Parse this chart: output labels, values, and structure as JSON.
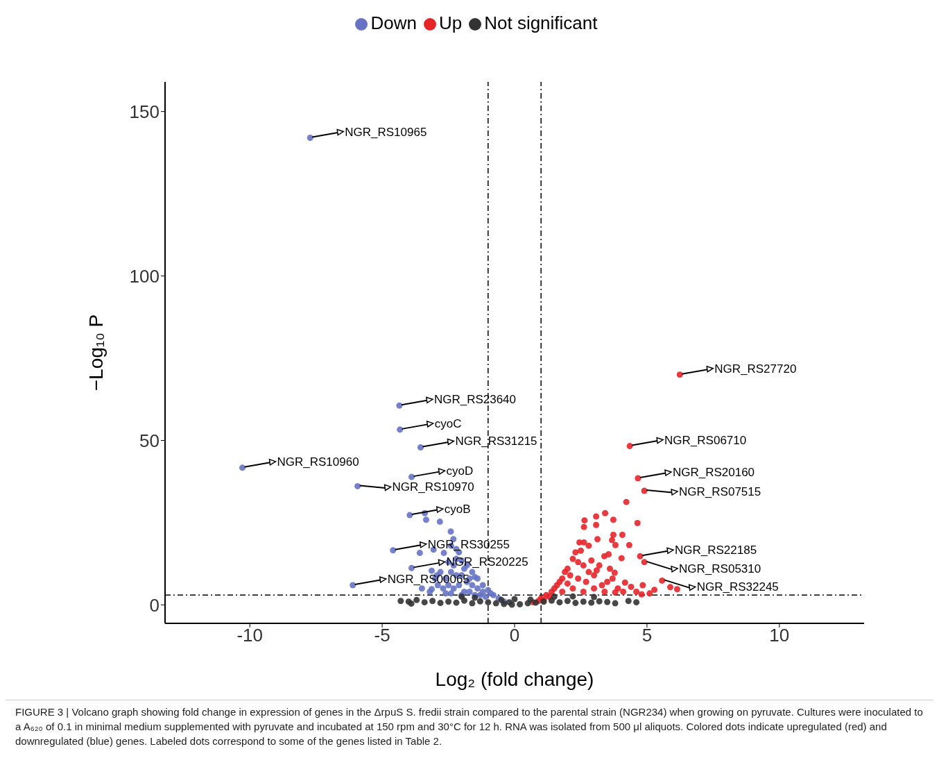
{
  "chart_data": {
    "type": "scatter",
    "xlabel": "Log₂ (fold change)",
    "ylabel": "−Log₁₀ P",
    "xlim": [
      -13.2,
      13.2
    ],
    "ylim": [
      -5.6,
      159
    ],
    "xticks": [
      -10,
      -5,
      0,
      5,
      10
    ],
    "yticks": [
      0,
      50,
      100,
      150
    ],
    "legend": "top",
    "marker": "circle",
    "series": [
      {
        "name": "Down",
        "color": "#6673c4",
        "x": [
          -7.72,
          -4.35,
          -4.33,
          -3.55,
          -10.28,
          -3.89,
          -5.93,
          -3.96,
          -4.59,
          -3.89,
          -6.11,
          -3.39,
          -3.34,
          -2.82,
          -2.41,
          -2.31,
          -3.58,
          -3.06,
          -2.67,
          -3.13,
          -2.93,
          -3.13,
          -2.5,
          -2.2,
          -2.0,
          -1.8,
          -1.6,
          -1.4,
          -1.2,
          -1.0,
          -0.8,
          -0.6,
          -0.4,
          -2.8,
          -2.6,
          -2.4,
          -2.2,
          -2.0,
          -1.8,
          -1.6,
          -1.4,
          -1.2,
          -2.9,
          -2.7,
          -2.5,
          -2.3,
          -2.1,
          -1.9,
          -1.7,
          -1.5,
          -1.3,
          -1.1,
          -2.6,
          -2.4,
          -2.0,
          -3.2,
          -3.5,
          -3.0,
          -1.9,
          -2.3,
          -1.7,
          -2.1,
          -2.4,
          -2.2,
          -1.5,
          -0.9
        ],
        "values": [
          142,
          60.6,
          53.3,
          47.9,
          41.7,
          38.9,
          36.1,
          27.3,
          16.6,
          11.2,
          6,
          27.9,
          25.9,
          25.3,
          22.3,
          20,
          15.8,
          16.8,
          15.8,
          10.4,
          9,
          4.8,
          13,
          14,
          13.5,
          12,
          10,
          8,
          6,
          4.5,
          3,
          2,
          1,
          10,
          8,
          10,
          9,
          9,
          7,
          6,
          5,
          4,
          6,
          5,
          6,
          5,
          6,
          4,
          4,
          3,
          3,
          2.5,
          3.5,
          3.5,
          3,
          4,
          5,
          8,
          11,
          12,
          8,
          16,
          18,
          17,
          8.5,
          3.5
        ]
      },
      {
        "name": "Up",
        "color": "#e5252a",
        "x": [
          6.24,
          4.35,
          4.66,
          4.9,
          4.74,
          4.9,
          5.57,
          4.22,
          3.42,
          3.08,
          2.64,
          3.73,
          4.64,
          2.62,
          3.08,
          3.13,
          3.73,
          4.07,
          3.68,
          4.33,
          3.81,
          2.62,
          4.04,
          3.39,
          3.55,
          3.78,
          4.17,
          5.88,
          6.14,
          4.84,
          5.28,
          1.0,
          1.2,
          1.4,
          1.6,
          1.8,
          2.0,
          2.2,
          2.4,
          2.6,
          2.8,
          3.0,
          3.2,
          2.3,
          2.5,
          1.9,
          1.5,
          1.7,
          2.1,
          2.4,
          2.7,
          3.0,
          3.3,
          3.5,
          3.7,
          3.9,
          4.1,
          4.4,
          4.6,
          1.3,
          1.8,
          2.2,
          2.6,
          3.4,
          3.6,
          2.9,
          3.1,
          2.0,
          1.1,
          0.9,
          0.7,
          3.8,
          4.8,
          5.1,
          2.45,
          2.8
        ],
        "values": [
          70,
          48.3,
          38.5,
          34.7,
          14.8,
          13,
          7.4,
          31.3,
          27.9,
          26.9,
          25.7,
          25.9,
          24.9,
          23.7,
          24.3,
          20,
          21.3,
          21.3,
          19.7,
          18.2,
          18.2,
          19,
          14.2,
          14.8,
          15.4,
          9.8,
          6.8,
          5.4,
          4.8,
          6,
          4.6,
          2,
          3,
          4,
          6,
          8,
          11,
          14,
          13,
          12,
          10,
          9,
          12,
          16,
          16.5,
          10,
          5,
          7,
          9,
          8,
          7,
          5,
          6,
          7,
          8,
          5,
          4,
          5.5,
          4,
          2.5,
          4,
          5,
          4,
          4,
          11,
          13.5,
          10.5,
          6.5,
          1.5,
          1.2,
          0.8,
          3.8,
          3.2,
          3.5,
          19,
          18
        ]
      },
      {
        "name": "Not significant",
        "color": "#333333",
        "x": [
          -4.3,
          -4.0,
          -3.7,
          -3.4,
          -3.1,
          -2.8,
          -2.5,
          -2.2,
          -1.9,
          -1.6,
          -1.3,
          -1.0,
          -0.7,
          -0.4,
          -0.1,
          0.2,
          0.5,
          0.8,
          1.1,
          1.4,
          1.7,
          2.0,
          2.3,
          2.6,
          2.9,
          3.2,
          3.5,
          3.8,
          4.3,
          4.6,
          -2.0,
          -1.5,
          1.5,
          2.2,
          0.0,
          -0.5,
          0.6,
          -3.9,
          3.0,
          -0.2
        ],
        "values": [
          1.2,
          1.0,
          1.5,
          0.8,
          1.2,
          0.6,
          1.0,
          0.7,
          1.3,
          0.5,
          1.1,
          0.8,
          0.5,
          0.3,
          0.1,
          0.2,
          0.5,
          0.7,
          1.0,
          1.3,
          0.8,
          1.2,
          0.6,
          1.0,
          0.7,
          1.1,
          0.9,
          0.5,
          1.2,
          0.8,
          2.5,
          2.2,
          2.5,
          2.6,
          1.8,
          1.5,
          1.6,
          0.4,
          2.4,
          0.8
        ]
      }
    ],
    "ref_lines": [
      {
        "axis": "x",
        "value": -1,
        "line_style": "dashed"
      },
      {
        "axis": "x",
        "value": 1,
        "line_style": "dashed"
      },
      {
        "axis": "y",
        "value": 3,
        "line_style": "dashed"
      }
    ],
    "annotations": [
      {
        "text": "NGR_RS10965",
        "x": -7.72,
        "y": 142
      },
      {
        "text": "NGR_RS23640",
        "x": -4.35,
        "y": 60.6
      },
      {
        "text": "cyoC",
        "x": -4.33,
        "y": 53.3
      },
      {
        "text": "NGR_RS31215",
        "x": -3.55,
        "y": 47.9
      },
      {
        "text": "NGR_RS10960",
        "x": -10.28,
        "y": 41.7
      },
      {
        "text": "cyoD",
        "x": -3.89,
        "y": 38.9
      },
      {
        "text": "NGR_RS10970",
        "x": -5.93,
        "y": 36.1
      },
      {
        "text": "cyoB",
        "x": -3.96,
        "y": 27.3
      },
      {
        "text": "NGR_RS30255",
        "x": -4.59,
        "y": 16.6
      },
      {
        "text": "NGR_RS20225",
        "x": -3.89,
        "y": 11.2
      },
      {
        "text": "NGR_RS00065",
        "x": -6.11,
        "y": 6
      },
      {
        "text": "NGR_RS27720",
        "x": 6.24,
        "y": 70
      },
      {
        "text": "NGR_RS06710",
        "x": 4.35,
        "y": 48.3
      },
      {
        "text": "NGR_RS20160",
        "x": 4.66,
        "y": 38.5
      },
      {
        "text": "NGR_RS07515",
        "x": 4.9,
        "y": 34.7
      },
      {
        "text": "NGR_RS22185",
        "x": 4.74,
        "y": 14.8
      },
      {
        "text": "NGR_RS05310",
        "x": 4.9,
        "y": 13
      },
      {
        "text": "NGR_RS32245",
        "x": 5.57,
        "y": 7.4
      },
      "FIGURE 3 | Volcano graph showing fold change in expression of genes in the ΔrpuS S. fredii strain compared to the parental strain (NGR234) when growing on pyruvate. Cultures were inoculated to a A₆₂₀ of 0.1 in minimal medium supplemented with pyruvate and incubated at 150 rpm and 30°C for 12 h. RNA was isolated from 500 μl aliquots. Colored dots indicate upregulated (red) and downregulated (blue) genes. Labeled dots correspond to some of the genes listed in Table 2."
    ]
  }
}
